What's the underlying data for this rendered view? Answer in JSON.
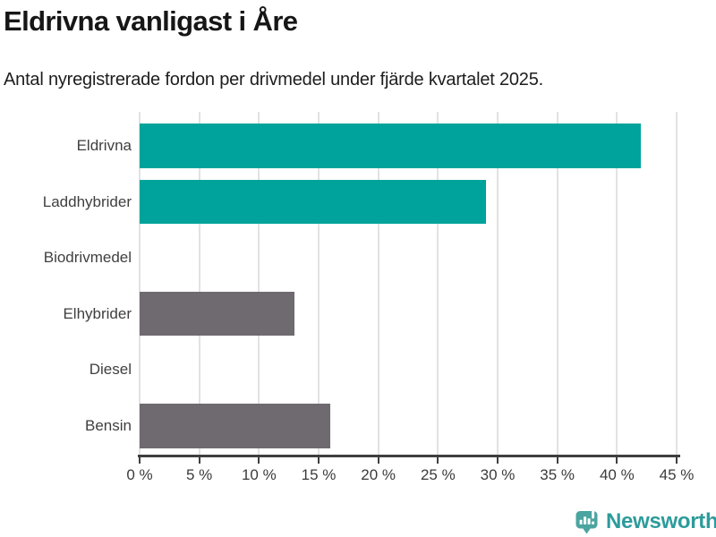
{
  "chart_data": {
    "type": "bar",
    "orientation": "horizontal",
    "title": "Eldrivna vanligast i Åre",
    "subtitle": "Antal nyregistrerade fordon per drivmedel under fjärde kvartalet 2025.",
    "categories": [
      "Eldrivna",
      "Laddhybrider",
      "Biodrivmedel",
      "Elhybrider",
      "Diesel",
      "Bensin"
    ],
    "values": [
      42,
      29,
      0,
      13,
      0,
      16
    ],
    "unit": "%",
    "bar_colors": [
      "#00a39b",
      "#00a39b",
      "#6e6a6f",
      "#6e6a6f",
      "#6e6a6f",
      "#6e6a6f"
    ],
    "xlim": [
      0,
      45
    ],
    "xticks": [
      0,
      5,
      10,
      15,
      20,
      25,
      30,
      35,
      40,
      45
    ],
    "xtick_labels": [
      "0 %",
      "5 %",
      "10 %",
      "15 %",
      "20 %",
      "25 %",
      "30 %",
      "35 %",
      "40 %",
      "45 %"
    ],
    "grid": "vertical",
    "legend": "none"
  },
  "colors": {
    "accent_teal": "#00a39b",
    "neutral_gray": "#6e6a6f",
    "axis": "#3f3f3f",
    "gridline": "#e2e2e2",
    "logo_icon": "#4ba4a0",
    "logo_text": "#2d9b9b"
  },
  "footer": {
    "brand": "Newsworthy"
  }
}
